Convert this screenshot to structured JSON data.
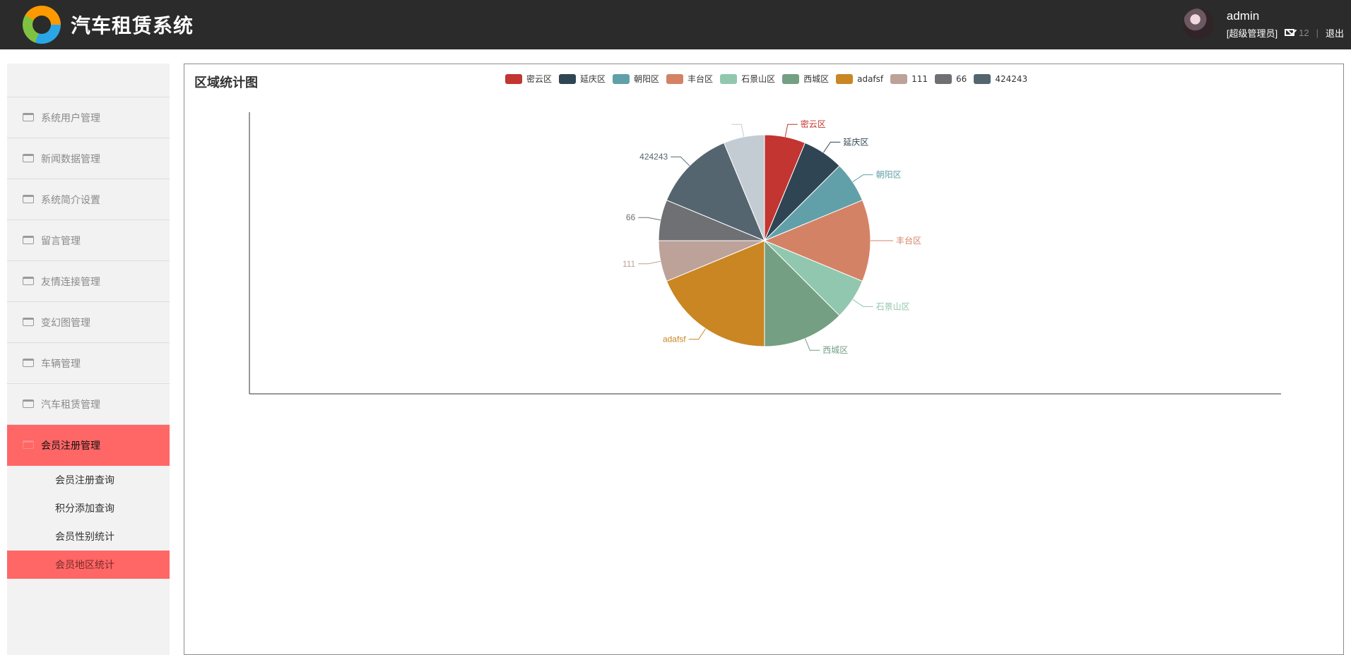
{
  "header": {
    "app_title": "汽车租赁系统",
    "logo_icon": "app-logo-icon",
    "user": {
      "avatar_icon": "user-avatar-icon",
      "username": "admin",
      "role": "[超级管理员]",
      "mail_icon": "mail-icon",
      "message_count": "12",
      "separator": "|",
      "logout_label": "退出"
    }
  },
  "sidebar": {
    "menu": [
      {
        "label": "系统用户管理",
        "icon": "folder-icon",
        "active": false
      },
      {
        "label": "新闻数据管理",
        "icon": "folder-icon",
        "active": false
      },
      {
        "label": "系统简介设置",
        "icon": "folder-icon",
        "active": false
      },
      {
        "label": "留言管理",
        "icon": "folder-icon",
        "active": false
      },
      {
        "label": "友情连接管理",
        "icon": "folder-icon",
        "active": false
      },
      {
        "label": "变幻图管理",
        "icon": "folder-icon",
        "active": false
      },
      {
        "label": "车辆管理",
        "icon": "folder-icon",
        "active": false
      },
      {
        "label": "汽车租赁管理",
        "icon": "folder-icon",
        "active": false
      },
      {
        "label": "会员注册管理",
        "icon": "folder-icon",
        "active": true
      }
    ],
    "submenu": [
      {
        "label": "会员注册查询",
        "active": false
      },
      {
        "label": "积分添加查询",
        "active": false
      },
      {
        "label": "会员性别统计",
        "active": false
      },
      {
        "label": "会员地区统计",
        "active": true
      }
    ]
  },
  "main": {
    "chart_title": "区域统计图"
  },
  "chart_data": {
    "type": "pie",
    "title": "区域统计图",
    "legend_position": "top-center",
    "categories": [
      "密云区",
      "延庆区",
      "朝阳区",
      "丰台区",
      "石景山区",
      "西城区",
      "adafsf",
      "111",
      "66",
      "424243",
      ""
    ],
    "values": [
      1,
      1,
      1,
      2,
      1,
      2,
      3,
      1,
      1,
      2,
      1
    ],
    "slice_colors": [
      "#c23531",
      "#2f4554",
      "#61a0a8",
      "#d48265",
      "#91c7ae",
      "#749f83",
      "#ca8622",
      "#bda29a",
      "#6e7074",
      "#546570",
      "#c4ccd3"
    ],
    "legend": [
      "密云区",
      "延庆区",
      "朝阳区",
      "丰台区",
      "石景山区",
      "西城区",
      "adafsf",
      "111",
      "66",
      "424243"
    ]
  }
}
